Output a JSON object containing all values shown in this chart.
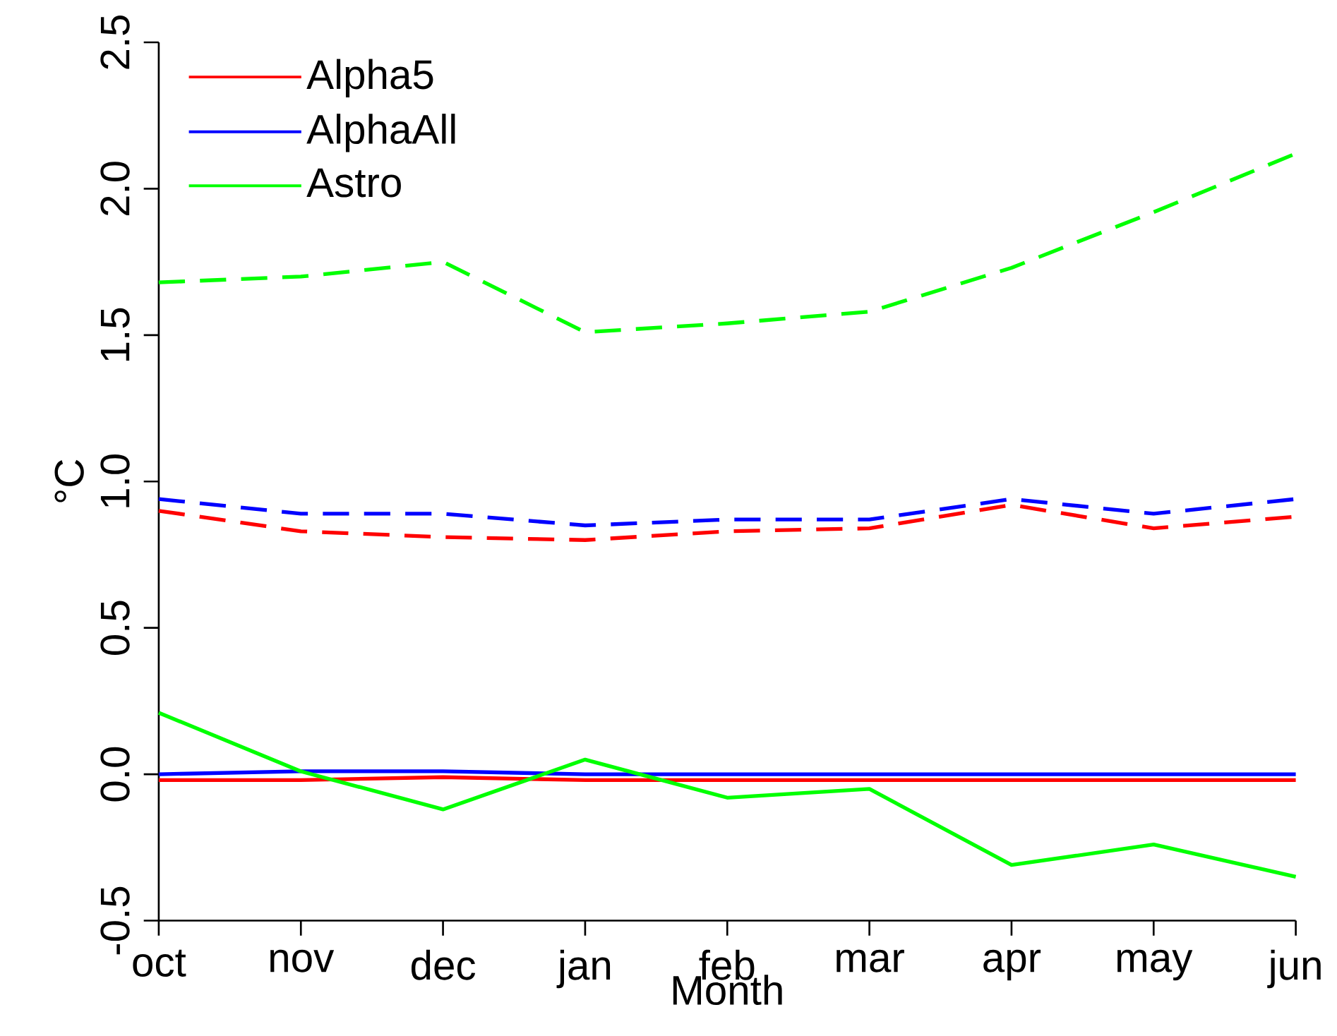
{
  "chart_data": {
    "type": "line",
    "xlabel": "Month",
    "ylabel": "°C",
    "categories": [
      "oct",
      "nov",
      "dec",
      "jan",
      "feb",
      "mar",
      "apr",
      "may",
      "jun"
    ],
    "ylim": [
      -0.5,
      2.5
    ],
    "yticks": [
      {
        "value": -0.5,
        "label": "-0.5"
      },
      {
        "value": 0,
        "label": "0.0"
      },
      {
        "value": 0.5,
        "label": "0.5"
      },
      {
        "value": 1,
        "label": "1.0"
      },
      {
        "value": 1.5,
        "label": "1.5"
      },
      {
        "value": 2,
        "label": "2.0"
      },
      {
        "value": 2.5,
        "label": "2.5"
      }
    ],
    "grid": false,
    "legend": "top left",
    "marker": "none",
    "series": [
      {
        "name": "Alpha5",
        "color": "#ff0000",
        "line_style": "solid",
        "values": [
          -0.02,
          -0.02,
          -0.01,
          -0.02,
          -0.02,
          -0.02,
          -0.02,
          -0.02,
          -0.02
        ]
      },
      {
        "name": "AlphaAll",
        "color": "#0000ff",
        "line_style": "solid",
        "values": [
          0.0,
          0.01,
          0.01,
          0.0,
          0.0,
          0.0,
          0.0,
          0.0,
          0.0
        ]
      },
      {
        "name": "Astro",
        "color": "#00ff00",
        "line_style": "solid",
        "values": [
          0.21,
          0.01,
          -0.12,
          0.05,
          -0.08,
          -0.05,
          -0.31,
          -0.24,
          -0.35
        ]
      },
      {
        "color": "#ff0000",
        "line_style": "dashed",
        "values": [
          0.9,
          0.83,
          0.81,
          0.8,
          0.83,
          0.84,
          0.92,
          0.84,
          0.88
        ]
      },
      {
        "color": "#0000ff",
        "line_style": "dashed",
        "values": [
          0.94,
          0.89,
          0.89,
          0.85,
          0.87,
          0.87,
          0.94,
          0.89,
          0.94
        ]
      },
      {
        "color": "#00ff00",
        "line_style": "dashed",
        "values": [
          1.68,
          1.7,
          1.75,
          1.51,
          1.54,
          1.58,
          1.73,
          1.92,
          2.12
        ]
      }
    ]
  }
}
